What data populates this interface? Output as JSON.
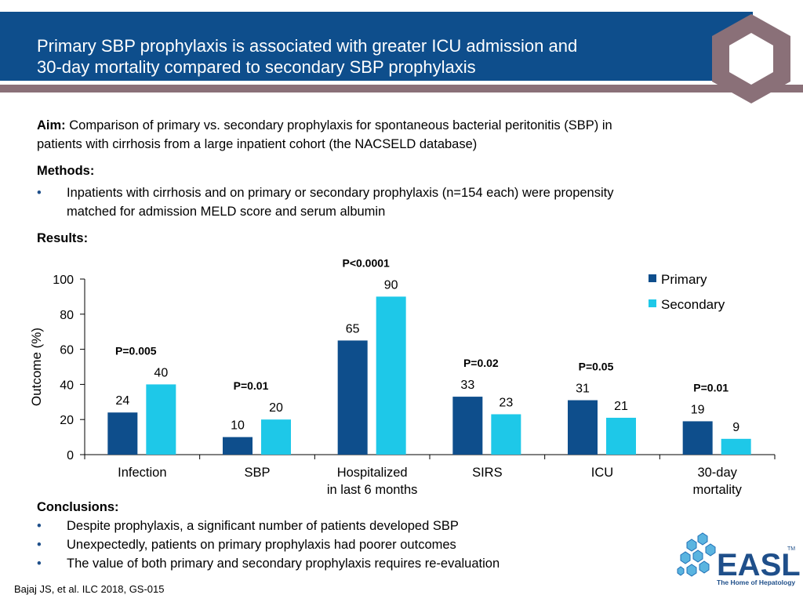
{
  "header": {
    "title_line1": "Primary SBP prophylaxis is associated with greater ICU admission and",
    "title_line2": "30-day mortality compared to secondary SBP prophylaxis"
  },
  "aim": {
    "label": "Aim:",
    "text_line1": "Comparison of primary vs. secondary prophylaxis for spontaneous bacterial peritonitis (SBP) in",
    "text_line2": "patients with cirrhosis from a large inpatient cohort (the NACSELD database)"
  },
  "methods": {
    "label": "Methods:",
    "bullets": [
      {
        "line1": "Inpatients with cirrhosis and on primary or secondary prophylaxis (n=154 each) were propensity",
        "line2": "matched for admission MELD score and serum albumin"
      }
    ]
  },
  "results": {
    "label": "Results:"
  },
  "conclusions": {
    "label": "Conclusions:",
    "bullets": [
      "Despite prophylaxis, a significant number of patients developed SBP",
      "Unexpectedly, patients on primary prophylaxis had poorer outcomes",
      "The value of both primary and secondary prophylaxis requires re-evaluation"
    ]
  },
  "footnote": "Bajaj JS, et al. ILC 2018, GS-015",
  "logo": {
    "text": "EASL",
    "tagline": "The Home of Hepatology",
    "tm": "TM"
  },
  "colors": {
    "header_bg": "#0e4e8c",
    "stripe": "#8a7078",
    "primary": "#0e4e8c",
    "secondary": "#1ec8e8",
    "bullet": "#1f4f8a"
  },
  "chart_data": {
    "type": "bar",
    "ylabel": "Outcome (%)",
    "ylim": [
      0,
      100
    ],
    "yticks": [
      0,
      20,
      40,
      60,
      80,
      100
    ],
    "categories": [
      [
        "Infection"
      ],
      [
        "SBP"
      ],
      [
        "Hospitalized",
        "in last 6 months"
      ],
      [
        "SIRS"
      ],
      [
        "ICU"
      ],
      [
        "30-day",
        "mortality"
      ]
    ],
    "series": [
      {
        "name": "Primary",
        "values": [
          24,
          10,
          65,
          33,
          31,
          19
        ]
      },
      {
        "name": "Secondary",
        "values": [
          40,
          20,
          90,
          23,
          21,
          9
        ]
      }
    ],
    "pvalues": [
      "P=0.005",
      "P=0.01",
      "P<0.0001",
      "P=0.02",
      "P=0.05",
      "P=0.01"
    ],
    "legend_position": "top-right",
    "grid": false
  }
}
